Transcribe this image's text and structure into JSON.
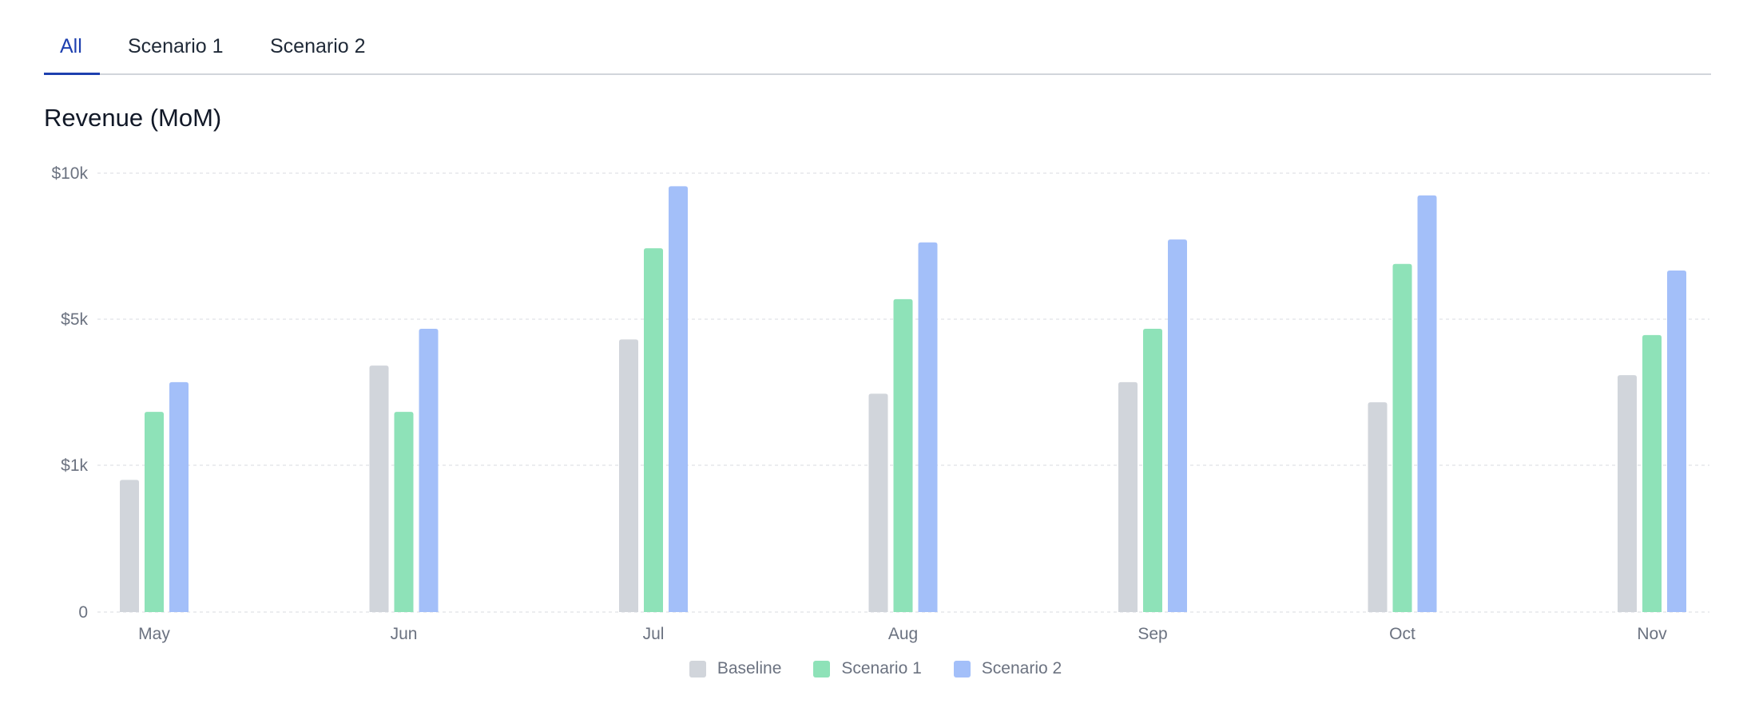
{
  "tabs": [
    {
      "label": "All",
      "active": true
    },
    {
      "label": "Scenario 1",
      "active": false
    },
    {
      "label": "Scenario 2",
      "active": false
    }
  ],
  "chart_data": {
    "type": "bar",
    "title": "Revenue (MoM)",
    "xlabel": "",
    "ylabel": "",
    "y_scale": "symlog",
    "y_ticks": [
      {
        "value": 0,
        "label": "0"
      },
      {
        "value": 1000,
        "label": "$1k"
      },
      {
        "value": 5000,
        "label": "$5k"
      },
      {
        "value": 10000,
        "label": "$10k"
      }
    ],
    "ylim": [
      0,
      10000
    ],
    "grid": true,
    "legend_position": "bottom-center",
    "categories": [
      "May",
      "Jun",
      "Jul",
      "Aug",
      "Sep",
      "Oct",
      "Nov"
    ],
    "series": [
      {
        "name": "Baseline",
        "color": "#d1d5db",
        "values": [
          900,
          3000,
          4000,
          2200,
          2500,
          2000,
          2700
        ]
      },
      {
        "name": "Scenario 1",
        "color": "#8ee2b8",
        "values": [
          1800,
          1800,
          7000,
          5500,
          4500,
          6500,
          4200
        ]
      },
      {
        "name": "Scenario 2",
        "color": "#a3bff9",
        "values": [
          2500,
          4500,
          9400,
          7200,
          7300,
          9000,
          6300
        ]
      }
    ]
  }
}
